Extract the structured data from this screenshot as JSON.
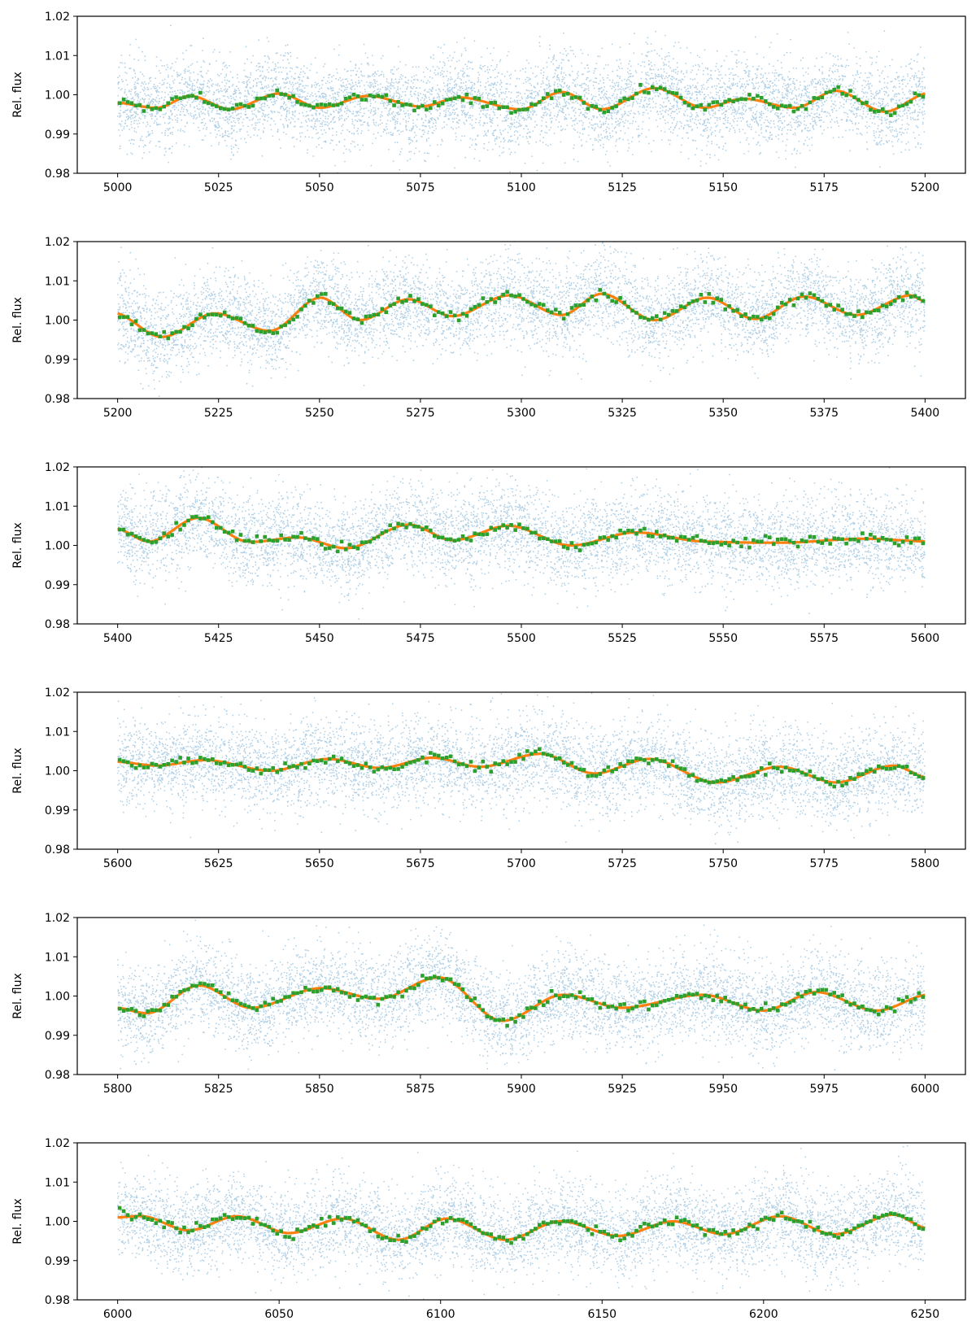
{
  "colors": {
    "raw": "#1f77b4",
    "model": "#ff7f0e",
    "binned": "#2ca02c",
    "axis": "#000000"
  },
  "chart_data": [
    {
      "type": "scatter",
      "title": "",
      "xlabel": "",
      "ylabel": "Rel. flux",
      "xlim": [
        4990,
        5210
      ],
      "ylim": [
        0.98,
        1.02
      ],
      "xticks": [
        5000,
        5025,
        5050,
        5075,
        5100,
        5125,
        5150,
        5175,
        5200
      ],
      "xtick_labels": [
        "5000",
        "5025",
        "5050",
        "5075",
        "5100",
        "5125",
        "5150",
        "5175",
        "5200"
      ],
      "yticks": [
        0.98,
        0.99,
        1.0,
        1.01,
        1.02
      ],
      "ytick_labels": [
        "0.98",
        "0.99",
        "1.00",
        "1.01",
        "1.02"
      ],
      "series": [
        {
          "name": "raw flux",
          "style": "small translucent dots",
          "noise_sigma": 0.0055,
          "x_range": [
            5000,
            5200
          ]
        },
        {
          "name": "model",
          "style": "line"
        },
        {
          "name": "binned flux",
          "style": "square markers"
        }
      ],
      "model_curve": {
        "x": [
          5000,
          5010,
          5018,
          5028,
          5040,
          5050,
          5062,
          5075,
          5085,
          5100,
          5110,
          5120,
          5133,
          5145,
          5155,
          5168,
          5178,
          5190,
          5200
        ],
        "y": [
          0.998,
          0.9967,
          0.9997,
          0.9963,
          1.0003,
          0.9967,
          0.9997,
          0.997,
          0.9993,
          0.9963,
          1.0007,
          0.9963,
          1.0017,
          0.9967,
          0.999,
          0.9967,
          1.001,
          0.9957,
          1.0003
        ]
      }
    },
    {
      "type": "scatter",
      "title": "",
      "xlabel": "",
      "ylabel": "Rel. flux",
      "xlim": [
        5190,
        5410
      ],
      "ylim": [
        0.98,
        1.02
      ],
      "xticks": [
        5200,
        5225,
        5250,
        5275,
        5300,
        5325,
        5350,
        5375,
        5400
      ],
      "xtick_labels": [
        "5200",
        "5225",
        "5250",
        "5275",
        "5300",
        "5325",
        "5350",
        "5375",
        "5400"
      ],
      "yticks": [
        0.98,
        0.99,
        1.0,
        1.01,
        1.02
      ],
      "ytick_labels": [
        "0.98",
        "0.99",
        "1.00",
        "1.01",
        "1.02"
      ],
      "series": [
        {
          "name": "raw flux",
          "style": "small translucent dots",
          "noise_sigma": 0.0055,
          "x_range": [
            5200,
            5400
          ]
        },
        {
          "name": "model",
          "style": "line"
        },
        {
          "name": "binned flux",
          "style": "square markers"
        }
      ],
      "model_curve": {
        "x": [
          5200,
          5211,
          5224,
          5238,
          5250,
          5260,
          5272,
          5283,
          5297,
          5310,
          5320,
          5333,
          5346,
          5358,
          5370,
          5383,
          5396,
          5400
        ],
        "y": [
          1.0017,
          0.9957,
          1.0017,
          0.9973,
          1.0057,
          1.0,
          1.0053,
          1.001,
          1.0063,
          1.0013,
          1.0067,
          1.0,
          1.0057,
          1.0003,
          1.006,
          1.0013,
          1.0063,
          1.0047
        ]
      }
    },
    {
      "type": "scatter",
      "title": "",
      "xlabel": "",
      "ylabel": "Rel. flux",
      "xlim": [
        5390,
        5610
      ],
      "ylim": [
        0.98,
        1.02
      ],
      "xticks": [
        5400,
        5425,
        5450,
        5475,
        5500,
        5525,
        5550,
        5575,
        5600
      ],
      "xtick_labels": [
        "5400",
        "5425",
        "5450",
        "5475",
        "5500",
        "5525",
        "5550",
        "5575",
        "5600"
      ],
      "yticks": [
        0.98,
        0.99,
        1.0,
        1.01,
        1.02
      ],
      "ytick_labels": [
        "0.98",
        "0.99",
        "1.00",
        "1.01",
        "1.02"
      ],
      "series": [
        {
          "name": "raw flux",
          "style": "small translucent dots",
          "noise_sigma": 0.0055,
          "x_range": [
            5400,
            5600
          ]
        },
        {
          "name": "model",
          "style": "line"
        },
        {
          "name": "binned flux",
          "style": "square markers"
        }
      ],
      "model_curve": {
        "x": [
          5400,
          5408,
          5420,
          5432,
          5445,
          5457,
          5472,
          5483,
          5497,
          5512,
          5528,
          5545,
          5565,
          5585,
          5600
        ],
        "y": [
          1.0043,
          1.001,
          1.007,
          1.001,
          1.002,
          0.9993,
          1.0053,
          1.0013,
          1.005,
          1.0,
          1.0033,
          1.001,
          1.0007,
          1.0017,
          1.001
        ]
      }
    },
    {
      "type": "scatter",
      "title": "",
      "xlabel": "",
      "ylabel": "Rel. flux",
      "xlim": [
        5590,
        5810
      ],
      "ylim": [
        0.98,
        1.02
      ],
      "xticks": [
        5600,
        5625,
        5650,
        5675,
        5700,
        5725,
        5750,
        5775,
        5800
      ],
      "xtick_labels": [
        "5600",
        "5625",
        "5650",
        "5675",
        "5700",
        "5725",
        "5750",
        "5775",
        "5800"
      ],
      "yticks": [
        0.98,
        0.99,
        1.0,
        1.01,
        1.02
      ],
      "ytick_labels": [
        "0.98",
        "0.99",
        "1.00",
        "1.01",
        "1.02"
      ],
      "series": [
        {
          "name": "raw flux",
          "style": "small translucent dots",
          "noise_sigma": 0.0055,
          "x_range": [
            5600,
            5800
          ]
        },
        {
          "name": "model",
          "style": "line"
        },
        {
          "name": "binned flux",
          "style": "square markers"
        }
      ],
      "model_curve": {
        "x": [
          5600,
          5610,
          5622,
          5638,
          5652,
          5665,
          5678,
          5690,
          5705,
          5718,
          5732,
          5748,
          5764,
          5778,
          5792,
          5800
        ],
        "y": [
          1.0023,
          1.0013,
          1.0027,
          1.0,
          1.003,
          1.0007,
          1.0033,
          1.001,
          1.0043,
          0.9993,
          1.003,
          0.997,
          1.001,
          0.997,
          1.0013,
          0.9983
        ]
      }
    },
    {
      "type": "scatter",
      "title": "",
      "xlabel": "",
      "ylabel": "Rel. flux",
      "xlim": [
        5790,
        6010
      ],
      "ylim": [
        0.98,
        1.02
      ],
      "xticks": [
        5800,
        5825,
        5850,
        5875,
        5900,
        5925,
        5950,
        5975,
        6000
      ],
      "xtick_labels": [
        "5800",
        "5825",
        "5850",
        "5875",
        "5900",
        "5925",
        "5950",
        "5975",
        "6000"
      ],
      "yticks": [
        0.98,
        0.99,
        1.0,
        1.01,
        1.02
      ],
      "ytick_labels": [
        "0.98",
        "0.99",
        "1.00",
        "1.01",
        "1.02"
      ],
      "series": [
        {
          "name": "raw flux",
          "style": "small translucent dots",
          "noise_sigma": 0.0055,
          "x_range": [
            5800,
            6000
          ]
        },
        {
          "name": "model",
          "style": "line"
        },
        {
          "name": "binned flux",
          "style": "square markers"
        }
      ],
      "model_curve": {
        "x": [
          5800,
          5808,
          5820,
          5833,
          5850,
          5865,
          5880,
          5895,
          5910,
          5925,
          5945,
          5960,
          5973,
          5988,
          6000
        ],
        "y": [
          0.997,
          0.9957,
          1.0027,
          0.997,
          1.002,
          0.9993,
          1.0047,
          0.9937,
          1.0003,
          0.997,
          1.0003,
          0.9963,
          1.001,
          0.9963,
          1.0003
        ]
      }
    },
    {
      "type": "scatter",
      "title": "",
      "xlabel": "",
      "ylabel": "Rel. flux",
      "xlim": [
        5987.5,
        6262.5
      ],
      "ylim": [
        0.98,
        1.02
      ],
      "xticks": [
        6000,
        6050,
        6100,
        6150,
        6200,
        6250
      ],
      "xtick_labels": [
        "6000",
        "6050",
        "6100",
        "6150",
        "6200",
        "6250"
      ],
      "yticks": [
        0.98,
        0.99,
        1.0,
        1.01,
        1.02
      ],
      "ytick_labels": [
        "0.98",
        "0.99",
        "1.00",
        "1.01",
        "1.02"
      ],
      "series": [
        {
          "name": "raw flux",
          "style": "small translucent dots",
          "noise_sigma": 0.0055,
          "x_range": [
            6000,
            6250
          ]
        },
        {
          "name": "model",
          "style": "line"
        },
        {
          "name": "binned flux",
          "style": "square markers"
        }
      ],
      "model_curve": {
        "x": [
          6000,
          6008,
          6022,
          6037,
          6053,
          6070,
          6087,
          6102,
          6120,
          6137,
          6155,
          6172,
          6188,
          6205,
          6222,
          6240,
          6250
        ],
        "y": [
          1.001,
          1.0013,
          0.9977,
          1.0013,
          0.997,
          1.0007,
          0.9953,
          1.0007,
          0.9953,
          1.0,
          0.9963,
          1.0,
          0.9967,
          1.0013,
          0.9967,
          1.0017,
          0.9983
        ]
      }
    }
  ]
}
